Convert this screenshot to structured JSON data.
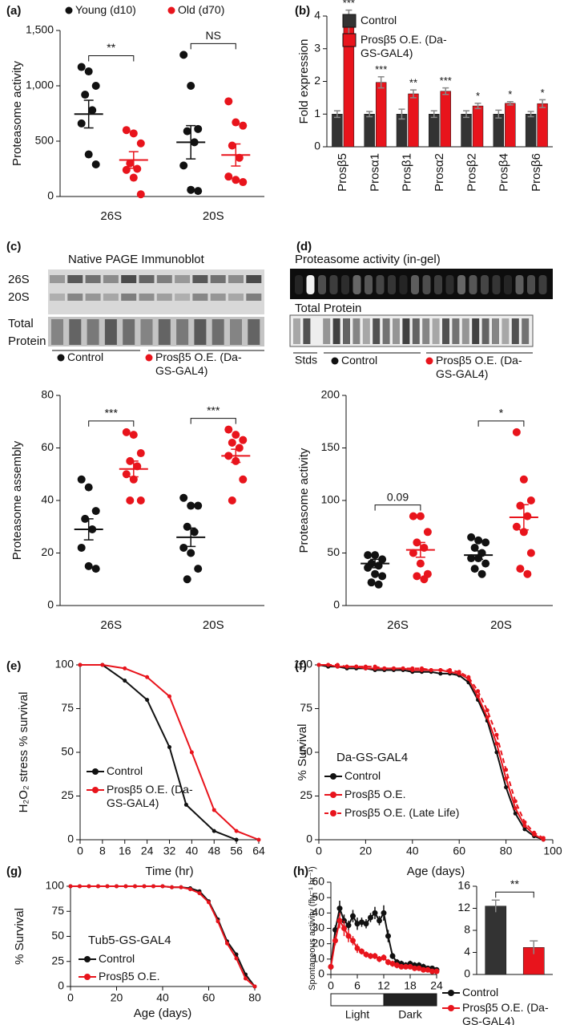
{
  "chart_data": [
    {
      "type": "dotplot",
      "panel": "(a)",
      "ylabel": "Proteasome activity",
      "categories": [
        "26S",
        "20S"
      ],
      "legend": "top",
      "series": [
        {
          "name": "Young (d10)",
          "color": "#111111",
          "values": [
            [
              1170,
              1130,
              1000,
              920,
              780,
              660,
              380,
              290
            ],
            [
              1280,
              1000,
              610,
              590,
              490,
              280,
              60,
              50
            ]
          ],
          "mean": [
            745,
            490
          ],
          "sem": [
            125,
            150
          ]
        },
        {
          "name": "Old (d70)",
          "color": "#e8141c",
          "values": [
            [
              600,
              570,
              480,
              300,
              250,
              240,
              170,
              20
            ],
            [
              860,
              670,
              640,
              460,
              350,
              180,
              150,
              130
            ]
          ],
          "mean": [
            330,
            375
          ],
          "sem": [
            75,
            100
          ]
        }
      ],
      "annotations": [
        "**",
        "NS"
      ],
      "ylim": [
        0,
        1500
      ],
      "yticks": [
        0,
        500,
        {
          "value": 1000,
          "label": "1,000"
        },
        {
          "value": 1500,
          "label": "1,500"
        }
      ]
    },
    {
      "type": "groupbar",
      "panel": "(b)",
      "ylabel": "Fold expression",
      "categories": [
        "Prosβ5",
        "Prosα1",
        "Prosβ1",
        "Prosα2",
        "Prosβ2",
        "Prosβ4",
        "Prosβ6"
      ],
      "legend": "upper right",
      "series": [
        {
          "name": "Control",
          "color": "#333333",
          "values": [
            1,
            1,
            1,
            1,
            1,
            1,
            1
          ],
          "errors": [
            0.1,
            0.08,
            0.15,
            0.1,
            0.1,
            0.12,
            0.08
          ]
        },
        {
          "name": "Prosβ5 O.E. (Da-GS-GAL4)",
          "color": "#e8141c",
          "values": [
            3.78,
            1.97,
            1.62,
            1.7,
            1.25,
            1.33,
            1.32
          ],
          "errors": [
            0.4,
            0.17,
            0.12,
            0.1,
            0.08,
            0.05,
            0.12
          ]
        }
      ],
      "annotations": [
        "***",
        "***",
        "**",
        "***",
        "*",
        "*",
        "*"
      ],
      "ylim": [
        0,
        4
      ],
      "yticks": [
        0,
        1,
        2,
        3,
        4
      ]
    },
    {
      "type": "dotplot",
      "ylabel": "Proteasome assembly",
      "categories": [
        "26S",
        "20S"
      ],
      "legend": "below",
      "series": [
        {
          "name": "Control",
          "color": "#111111",
          "values": [
            [
              48,
              45,
              36,
              33,
              29,
              22,
              15,
              14
            ],
            [
              41,
              38,
              38,
              30,
              28,
              22,
              20,
              14,
              10
            ]
          ],
          "mean": [
            29,
            26
          ],
          "sem": [
            4,
            3.5
          ]
        },
        {
          "name": "Prosβ5 O.E. (Da-GS-GAL4)",
          "color": "#e8141c",
          "values": [
            [
              66,
              65,
              58,
              55,
              53,
              50,
              48,
              40,
              40
            ],
            [
              67,
              65,
              63,
              62,
              60,
              57,
              55,
              48,
              40
            ]
          ],
          "mean": [
            52,
            57
          ],
          "sem": [
            3,
            2.5
          ]
        }
      ],
      "annotations": [
        "***",
        "***"
      ],
      "ylim": [
        0,
        80
      ],
      "yticks": [
        0,
        20,
        40,
        60,
        80
      ]
    },
    {
      "type": "dotplot",
      "ylabel": "Proteasome activity",
      "categories": [
        "26S",
        "20S"
      ],
      "legend": "below",
      "series": [
        {
          "name": "Control",
          "color": "#111111",
          "values": [
            [
              48,
              48,
              44,
              40,
              38,
              36,
              30,
              28,
              22,
              20
            ],
            [
              65,
              62,
              60,
              55,
              50,
              45,
              45,
              40,
              35,
              30
            ]
          ],
          "mean": [
            40,
            48
          ],
          "sem": [
            4,
            4
          ]
        },
        {
          "name": "Prosβ5 O.E. (Da-GS-GAL4)",
          "color": "#e8141c",
          "values": [
            [
              85,
              85,
              70,
              60,
              55,
              50,
              40,
              30,
              28,
              25
            ],
            [
              165,
              120,
              100,
              95,
              85,
              75,
              70,
              50,
              35,
              30
            ]
          ],
          "mean": [
            53,
            84
          ],
          "sem": [
            7,
            12
          ]
        }
      ],
      "annotations": [
        "0.09",
        "*"
      ],
      "ylim": [
        0,
        200
      ],
      "yticks": [
        0,
        50,
        100,
        150,
        200
      ]
    },
    {
      "type": "line",
      "panel": "(e)",
      "ylabel": "H₂O₂ stress % survival",
      "xlabel": "Time (hr)",
      "legend": "lower left",
      "xlim": [
        0,
        64
      ],
      "xticks": [
        0,
        8,
        16,
        24,
        32,
        40,
        48,
        56,
        64
      ],
      "ylim": [
        0,
        100
      ],
      "yticks": [
        0,
        25,
        50,
        75,
        100
      ],
      "series": [
        {
          "name": "Control",
          "color": "#111111",
          "x": [
            0,
            8,
            16,
            24,
            32,
            38,
            48,
            56
          ],
          "values": [
            100,
            100,
            91,
            80,
            53,
            20,
            5,
            0
          ]
        },
        {
          "name": "Prosβ5 O.E. (Da-GS-GAL4)",
          "color": "#e8141c",
          "x": [
            0,
            8,
            16,
            24,
            32,
            40,
            48,
            56,
            64
          ],
          "values": [
            100,
            100,
            98,
            93,
            82,
            50,
            17,
            5,
            0
          ]
        }
      ]
    },
    {
      "type": "line",
      "panel": "(f)",
      "ylabel": "% Survival",
      "xlabel": "Age (days)",
      "annotation": "Da-GS-GAL4",
      "legend": "lower left",
      "xlim": [
        0,
        100
      ],
      "xticks": [
        0,
        20,
        40,
        60,
        80,
        100
      ],
      "ylim": [
        0,
        100
      ],
      "yticks": [
        0,
        25,
        50,
        75,
        100
      ],
      "x": [
        0,
        4,
        8,
        12,
        16,
        20,
        24,
        28,
        32,
        36,
        40,
        44,
        48,
        52,
        56,
        60,
        64,
        68,
        72,
        76,
        80,
        84,
        88,
        92,
        96
      ],
      "series": [
        {
          "name": "Control",
          "color": "#111111",
          "values": [
            100,
            99,
            99,
            98,
            98,
            98,
            97,
            97,
            97,
            97,
            96,
            96,
            96,
            95,
            95,
            94,
            90,
            80,
            68,
            50,
            30,
            15,
            6,
            2,
            0
          ]
        },
        {
          "name": "Prosβ5 O.E.",
          "color": "#e8141c",
          "values": [
            100,
            100,
            99,
            99,
            99,
            98,
            98,
            98,
            98,
            98,
            97,
            97,
            97,
            97,
            96,
            95,
            92,
            82,
            70,
            55,
            35,
            18,
            8,
            3,
            0
          ]
        },
        {
          "name": "Prosβ5 O.E. (Late Life)",
          "color": "#e8141c",
          "dash": true,
          "values": [
            100,
            100,
            100,
            99,
            99,
            99,
            99,
            98,
            98,
            98,
            98,
            98,
            97,
            97,
            97,
            96,
            93,
            85,
            74,
            60,
            40,
            22,
            10,
            4,
            1
          ]
        }
      ]
    },
    {
      "type": "line",
      "panel": "(g)",
      "ylabel": "% Survival",
      "xlabel": "Age (days)",
      "annotation": "Tub5-GS-GAL4",
      "legend": "lower left",
      "xlim": [
        0,
        80
      ],
      "xticks": [
        0,
        20,
        40,
        60,
        80
      ],
      "ylim": [
        0,
        100
      ],
      "yticks": [
        0,
        25,
        50,
        75,
        100
      ],
      "x": [
        0,
        4,
        8,
        12,
        16,
        20,
        24,
        28,
        32,
        36,
        40,
        44,
        48,
        52,
        56,
        60,
        64,
        68,
        72,
        76,
        80
      ],
      "series": [
        {
          "name": "Control",
          "color": "#111111",
          "values": [
            100,
            100,
            100,
            100,
            100,
            100,
            100,
            100,
            100,
            100,
            100,
            99,
            99,
            98,
            95,
            85,
            67,
            45,
            32,
            12,
            0
          ]
        },
        {
          "name": "Prosβ5 O.E.",
          "color": "#e8141c",
          "values": [
            100,
            100,
            100,
            100,
            100,
            100,
            100,
            100,
            100,
            100,
            100,
            99,
            99,
            97,
            93,
            84,
            65,
            43,
            28,
            8,
            0
          ]
        }
      ]
    },
    {
      "type": "line",
      "panel": "(h)",
      "ylabel": "Spontaneous activity (fly⁻¹ hr⁻¹)",
      "light_dark": [
        "Light",
        "Dark"
      ],
      "legend": "lower right",
      "xlim": [
        0,
        24
      ],
      "xticks": [
        0,
        6,
        12,
        18,
        24
      ],
      "ylim": [
        0,
        60
      ],
      "yticks": [
        0,
        10,
        20,
        30,
        40,
        50,
        60
      ],
      "x": [
        0,
        1,
        2,
        3,
        4,
        5,
        6,
        7,
        8,
        9,
        10,
        11,
        12,
        13,
        14,
        15,
        16,
        17,
        18,
        19,
        20,
        21,
        22,
        23,
        24
      ],
      "series": [
        {
          "name": "Control",
          "color": "#111111",
          "values": [
            5,
            29,
            43,
            35,
            32,
            38,
            33,
            34,
            33,
            37,
            40,
            35,
            40,
            25,
            12,
            8,
            7,
            6,
            7,
            6,
            6,
            5,
            4,
            4,
            3
          ],
          "errors": [
            2,
            3,
            5,
            4,
            3,
            4,
            4,
            3,
            3,
            3,
            4,
            3,
            5,
            4,
            2,
            2,
            2,
            2,
            2,
            2,
            2,
            2,
            1,
            1,
            1
          ]
        },
        {
          "name": "Prosβ5 O.E. (Da-GS-GAL4)",
          "color": "#e8141c",
          "values": [
            5,
            22,
            35,
            30,
            25,
            22,
            17,
            15,
            13,
            12,
            12,
            10,
            11,
            8,
            7,
            6,
            5,
            5,
            5,
            4,
            4,
            3,
            3,
            2,
            2
          ],
          "errors": [
            2,
            3,
            5,
            5,
            4,
            3,
            3,
            2,
            2,
            2,
            2,
            2,
            2,
            2,
            2,
            2,
            1,
            1,
            1,
            1,
            1,
            1,
            1,
            1,
            1
          ]
        }
      ]
    },
    {
      "type": "bar",
      "categories": [
        null,
        null
      ],
      "values": [
        12.4,
        4.9
      ],
      "errors": [
        1.1,
        1.2
      ],
      "colors": [
        "#333333",
        "#e8141c"
      ],
      "annotation": "**",
      "ylim": [
        0,
        16
      ],
      "yticks": [
        0,
        4,
        8,
        12,
        16
      ]
    }
  ],
  "blots": [
    {
      "panel": "(c)",
      "title": "Native PAGE Immunoblot",
      "bands": [
        "26S",
        "20S"
      ],
      "total_protein": [
        "Total",
        "Protein"
      ]
    },
    {
      "panel": "(d)",
      "title": "Proteasome activity (in-gel)",
      "total_protein": "Total Protein",
      "standards": "Stds"
    }
  ]
}
